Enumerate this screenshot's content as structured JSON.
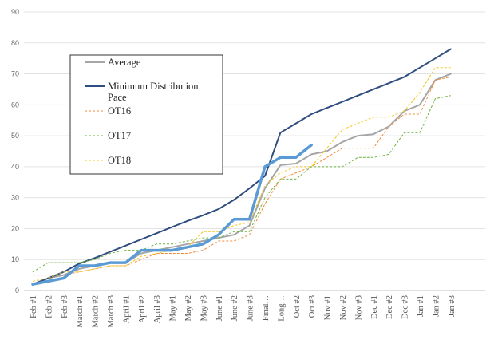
{
  "chart_data": {
    "type": "line",
    "title": "",
    "xlabel": "",
    "ylabel": "",
    "ylim": [
      0,
      90
    ],
    "yticks": [
      0,
      10,
      20,
      30,
      40,
      50,
      60,
      70,
      80,
      90
    ],
    "grid": "horizontal",
    "legend_position": "top-left",
    "categories": [
      "Feb #1",
      "Feb #2",
      "Feb #3",
      "March #1",
      "March #2",
      "March #3",
      "April #1",
      "April #2",
      "April #3",
      "May #1",
      "May #2",
      "May #3",
      "June #1",
      "June #2",
      "June #3",
      "Final…",
      "Long…",
      "Oct #2",
      "Oct #3",
      "Nov #1",
      "Nov #2",
      "Nov #3",
      "Dec #1",
      "Dec #2",
      "Dec #3",
      "Jan #1",
      "Jan #2",
      "Jan #3"
    ],
    "series": [
      {
        "name": "Average",
        "color": "#a6a6a6",
        "dash": "solid",
        "width": 2,
        "values": [
          2,
          4,
          5,
          7,
          8,
          9,
          9,
          12,
          13,
          14,
          15,
          16,
          17,
          18,
          21,
          33,
          40.5,
          41,
          44,
          45,
          48,
          50,
          50.5,
          53,
          58,
          60,
          68,
          70
        ]
      },
      {
        "name": "Minimum Distribution Pace",
        "color": "#2f4d7e",
        "dash": "solid",
        "width": 2,
        "values": [
          2,
          4,
          6,
          8.7,
          10.5,
          12.5,
          14.5,
          16.5,
          18.5,
          20.5,
          22.5,
          24.3,
          26.3,
          29.3,
          33,
          37,
          51,
          54,
          57,
          59,
          61,
          63,
          65,
          67,
          69,
          72,
          75,
          78
        ]
      },
      {
        "name": "OT16",
        "color": "#f08a3c",
        "dash": "dashed",
        "width": 1,
        "values": [
          5,
          5,
          5,
          6,
          7,
          8,
          8,
          10,
          12,
          12,
          12,
          13,
          16,
          16,
          18,
          28,
          36,
          38,
          40,
          43,
          46,
          46,
          46,
          53,
          57,
          57,
          68,
          69
        ]
      },
      {
        "name": "OT17",
        "color": "#6db33f",
        "dash": "dashed",
        "width": 1,
        "values": [
          6,
          9,
          9,
          9,
          10,
          12,
          13,
          13,
          15,
          15,
          16,
          17,
          17,
          19,
          19,
          30,
          36,
          36,
          40,
          40,
          40,
          43,
          43,
          44,
          51,
          51,
          62,
          63
        ]
      },
      {
        "name": "OT18",
        "color": "#f5c518",
        "dash": "dashed",
        "width": 1,
        "values": [
          3,
          4,
          6,
          6,
          7,
          8,
          8,
          11,
          12,
          13,
          14,
          19,
          19,
          21,
          22,
          34,
          38,
          40,
          40,
          46,
          52,
          54,
          56,
          56,
          58,
          64,
          72,
          72
        ]
      },
      {
        "name": "",
        "color": "#5b9bd5",
        "dash": "solid",
        "width": 3.5,
        "values": [
          2,
          3,
          4,
          8,
          8,
          9,
          9,
          13,
          13,
          13,
          14,
          15,
          18,
          23,
          23,
          40,
          43,
          43,
          47,
          null,
          null,
          null,
          null,
          null,
          null,
          null,
          null,
          null
        ]
      }
    ]
  }
}
